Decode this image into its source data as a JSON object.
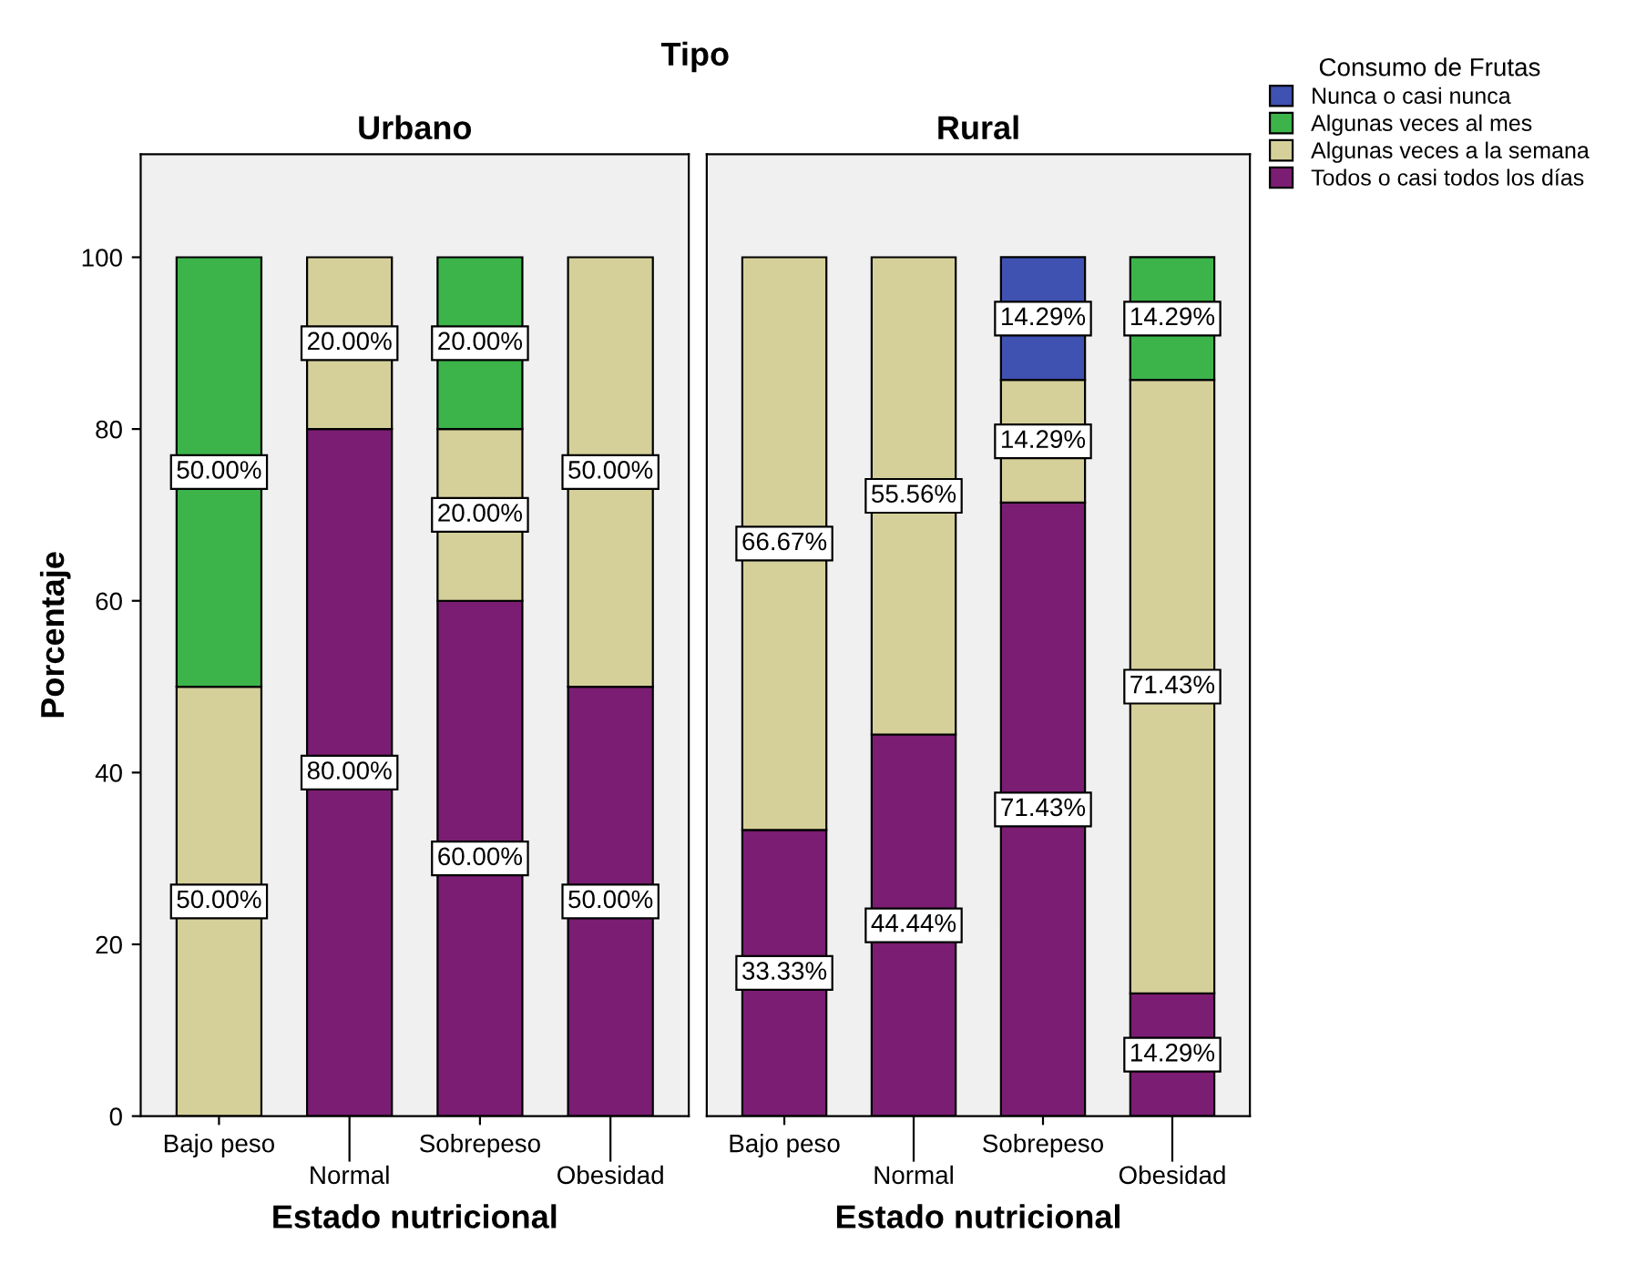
{
  "chart_data": [
    {
      "type": "bar",
      "title": "Urbano",
      "xlabel": "Estado nutricional",
      "ylabel": "Porcentaje",
      "annotations": [
        "Tipo"
      ],
      "stacked": true,
      "categories": [
        "Bajo peso",
        "Normal",
        "Sobrepeso",
        "Obesidad"
      ],
      "ylim": [
        0,
        112
      ],
      "yticks": [
        0,
        20,
        40,
        60,
        80,
        100
      ],
      "grid": false,
      "legend": false,
      "series": [
        {
          "color": "#7b1d72",
          "values": [
            0,
            80,
            60,
            50
          ],
          "value_labels": [
            null,
            "80.00%",
            "60.00%",
            "50.00%"
          ]
        },
        {
          "color": "#d5d09a",
          "values": [
            50,
            20,
            20,
            50
          ],
          "value_labels": [
            "50.00%",
            "20.00%",
            "20.00%",
            "50.00%"
          ]
        },
        {
          "color": "#3cb44a",
          "values": [
            50,
            0,
            20,
            0
          ],
          "value_labels": [
            "50.00%",
            null,
            "20.00%",
            null
          ]
        },
        {
          "color": "#3f51b1",
          "values": [
            0,
            0,
            0,
            0
          ],
          "value_labels": [
            null,
            null,
            null,
            null
          ]
        }
      ]
    },
    {
      "type": "bar",
      "title": "Rural",
      "xlabel": "Estado nutricional",
      "legend_title": "Consumo de Frutas",
      "stacked": true,
      "categories": [
        "Bajo peso",
        "Normal",
        "Sobrepeso",
        "Obesidad"
      ],
      "ylim": [
        0,
        112
      ],
      "yticks": [
        0,
        20,
        40,
        60,
        80,
        100
      ],
      "tick_labels": "x",
      "grid": false,
      "legend": "right",
      "series": [
        {
          "name": "Todos o casi todos los días",
          "color": "#7b1d72",
          "values": [
            33.33,
            44.44,
            71.43,
            14.29
          ],
          "value_labels": [
            "33.33%",
            "44.44%",
            "71.43%",
            "14.29%"
          ]
        },
        {
          "name": "Algunas veces a la semana",
          "color": "#d5d09a",
          "values": [
            66.67,
            55.56,
            14.29,
            71.43
          ],
          "value_labels": [
            "66.67%",
            "55.56%",
            "14.29%",
            "71.43%"
          ]
        },
        {
          "name": "Algunas veces al mes",
          "color": "#3cb44a",
          "values": [
            0,
            0,
            0,
            14.29
          ],
          "value_labels": [
            null,
            null,
            null,
            "14.29%"
          ]
        },
        {
          "name": "Nunca o casi nunca",
          "color": "#3f51b1",
          "values": [
            0,
            0,
            14.29,
            0
          ],
          "value_labels": [
            null,
            null,
            "14.29%",
            null
          ]
        }
      ]
    }
  ]
}
